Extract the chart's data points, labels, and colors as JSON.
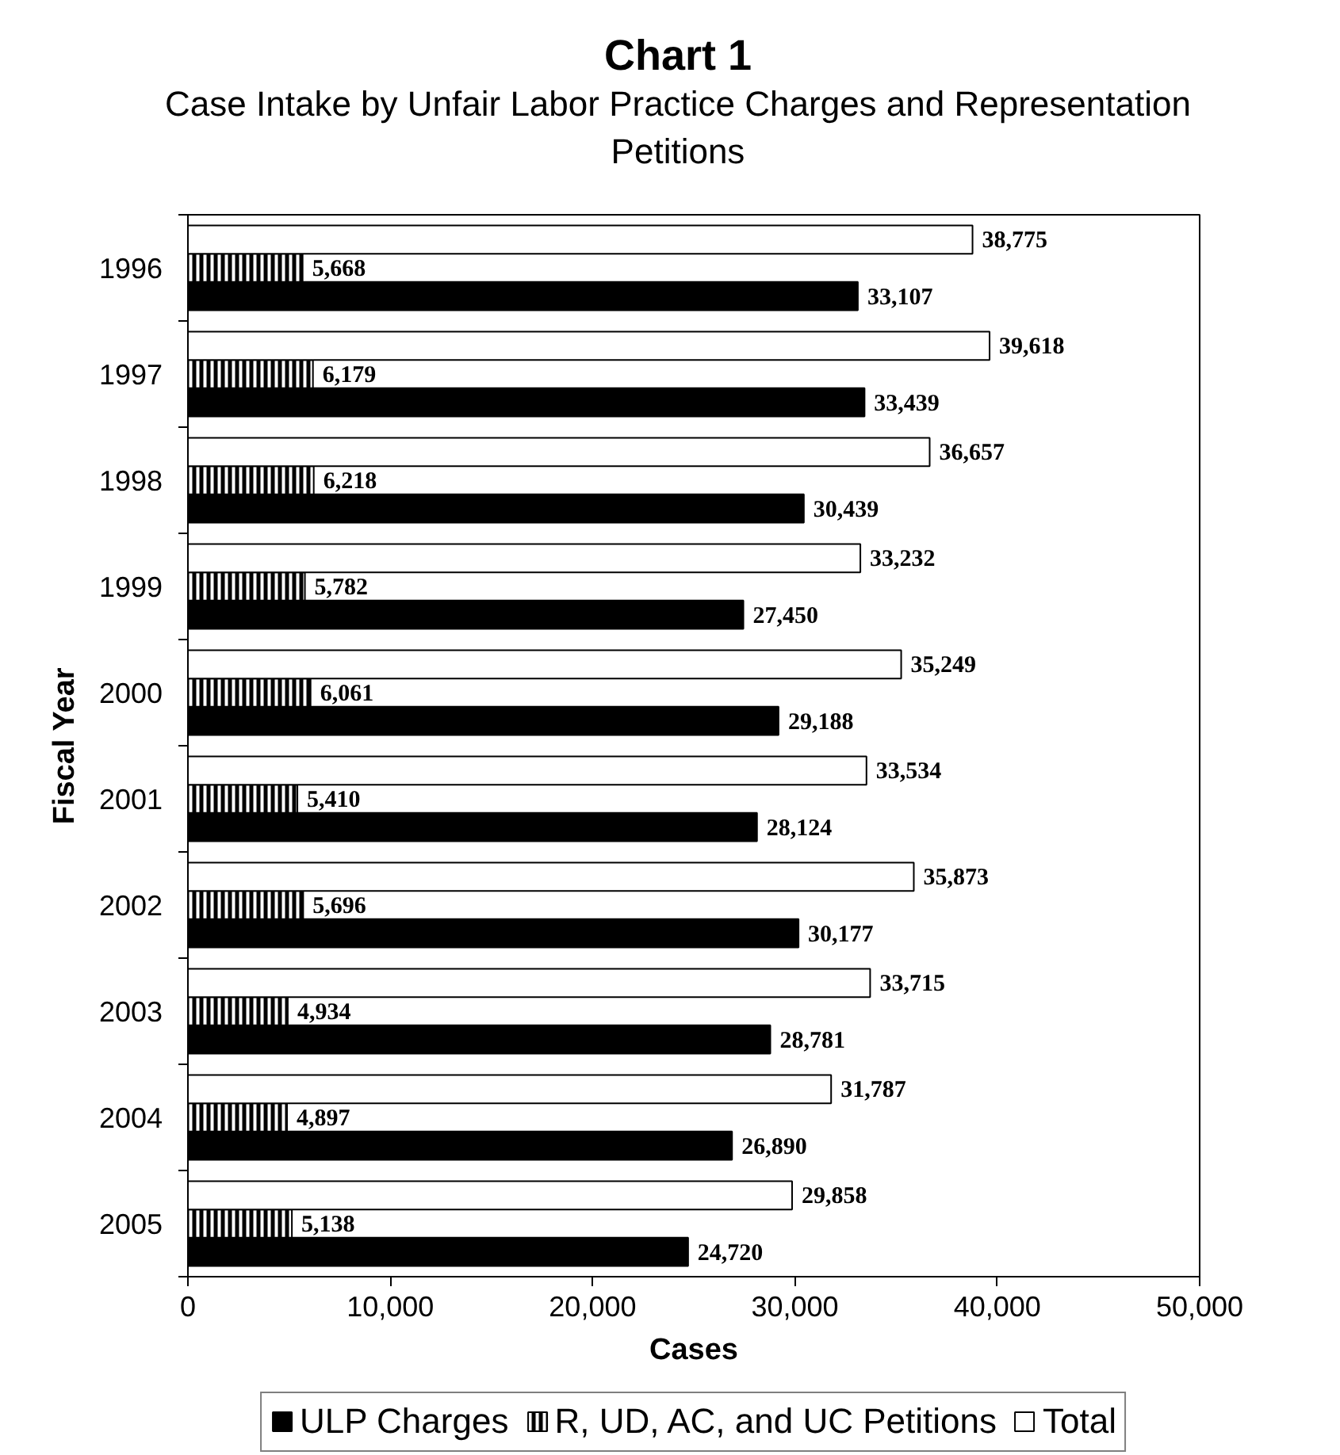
{
  "chart_data": {
    "type": "bar",
    "orientation": "horizontal",
    "title": "Chart 1",
    "subtitle": "Case Intake by Unfair Labor Practice Charges and Representation Petitions",
    "xlabel": "Cases",
    "ylabel": "Fiscal Year",
    "categories": [
      "1996",
      "1997",
      "1998",
      "1999",
      "2000",
      "2001",
      "2002",
      "2003",
      "2004",
      "2005"
    ],
    "series": [
      {
        "name": "ULP Charges",
        "color": "#000000",
        "values": [
          33107,
          33439,
          30439,
          27450,
          29188,
          28124,
          30177,
          28781,
          26890,
          24720
        ],
        "value_labels": [
          "33,107",
          "33,439",
          "30,439",
          "27,450",
          "29,188",
          "28,124",
          "30,177",
          "28,781",
          "26,890",
          "24,720"
        ]
      },
      {
        "name": "R, UD, AC, and UC Petitions",
        "color": "#000000",
        "values": [
          5668,
          6179,
          6218,
          5782,
          6061,
          5410,
          5696,
          4934,
          4897,
          5138
        ],
        "value_labels": [
          "5,668",
          "6,179",
          "6,218",
          "5,782",
          "6,061",
          "5,410",
          "5,696",
          "4,934",
          "4,897",
          "5,138"
        ]
      },
      {
        "name": "Total",
        "color": "#ffffff",
        "values": [
          38775,
          39618,
          36657,
          33232,
          35249,
          33534,
          35873,
          33715,
          31787,
          29858
        ],
        "value_labels": [
          "38,775",
          "39,618",
          "36,657",
          "33,232",
          "35,249",
          "33,534",
          "35,873",
          "33,715",
          "31,787",
          "29,858"
        ]
      }
    ],
    "xlim": [
      0,
      50000
    ],
    "xticks": [
      0,
      {
        "value": 10000,
        "label": "10,000"
      },
      {
        "value": 20000,
        "label": "20,000"
      },
      {
        "value": 30000,
        "label": "30,000"
      },
      {
        "value": 40000,
        "label": "40,000"
      },
      {
        "value": 50000,
        "label": "50,000"
      }
    ],
    "legend": "bottom",
    "grid": false
  }
}
